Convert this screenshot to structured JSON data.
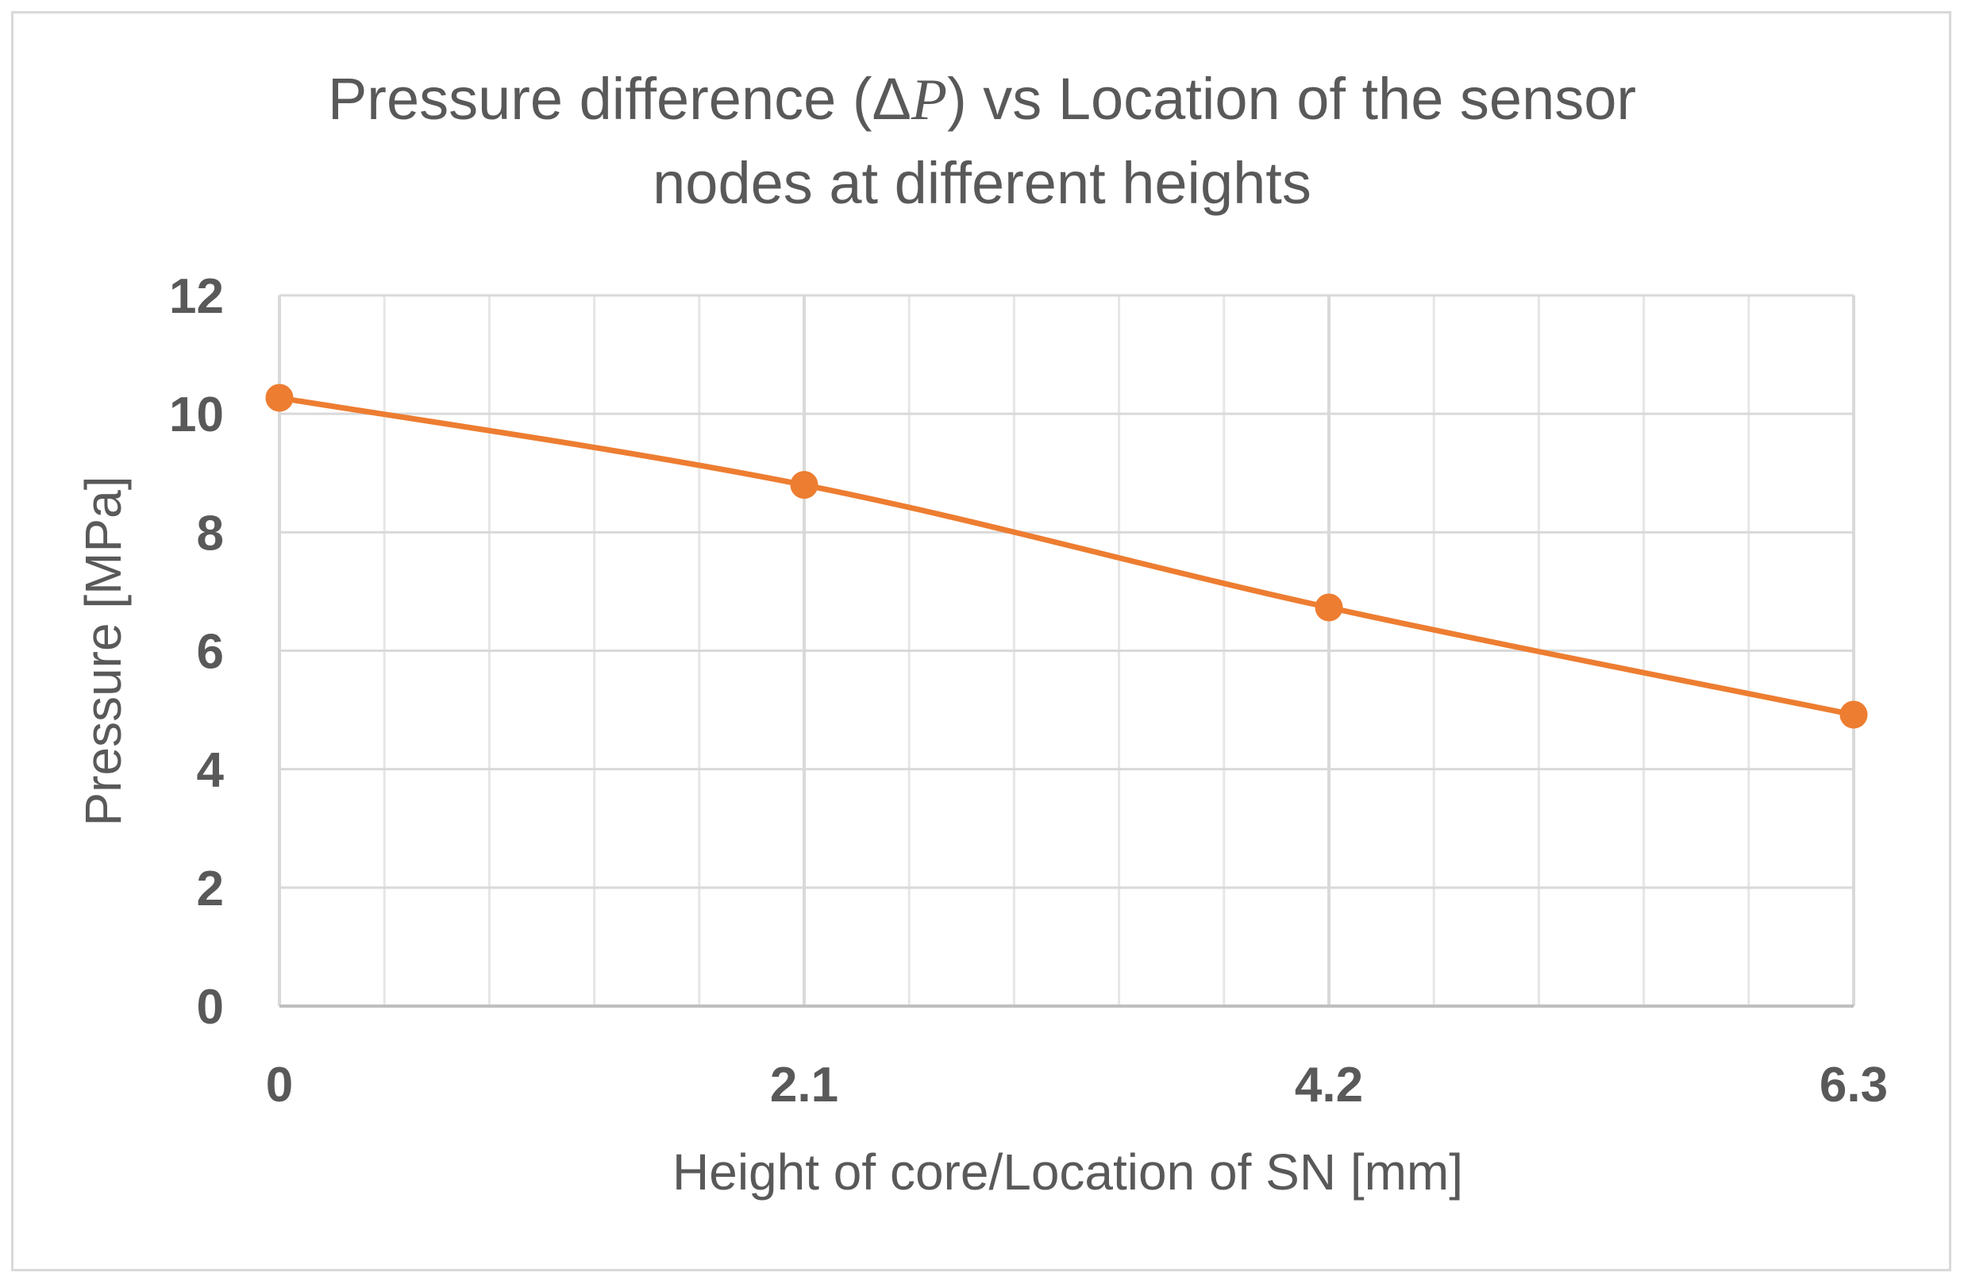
{
  "chart_data": {
    "type": "line",
    "title_line1_prefix": "Pressure difference (",
    "title_delta": "Δ",
    "title_symbol": "P",
    "title_line1_suffix": ") vs Location of the sensor",
    "title_line2": "nodes at different heights",
    "xlabel": "Height of core/Location of SN [mm]",
    "ylabel": "Pressure [MPa]",
    "categories": [
      "0",
      "2.1",
      "4.2",
      "6.3"
    ],
    "x": [
      0,
      2.1,
      4.2,
      6.3
    ],
    "xlim": [
      0,
      6.3
    ],
    "ylim": [
      0,
      12
    ],
    "yticks": [
      "0",
      "2",
      "4",
      "6",
      "8",
      "10",
      "12"
    ],
    "minor_x_divisions": 15,
    "grid": true,
    "series": [
      {
        "name": "Pressure",
        "values": [
          10.27,
          8.8,
          6.73,
          4.92
        ],
        "color": "#ED7D31"
      }
    ]
  }
}
